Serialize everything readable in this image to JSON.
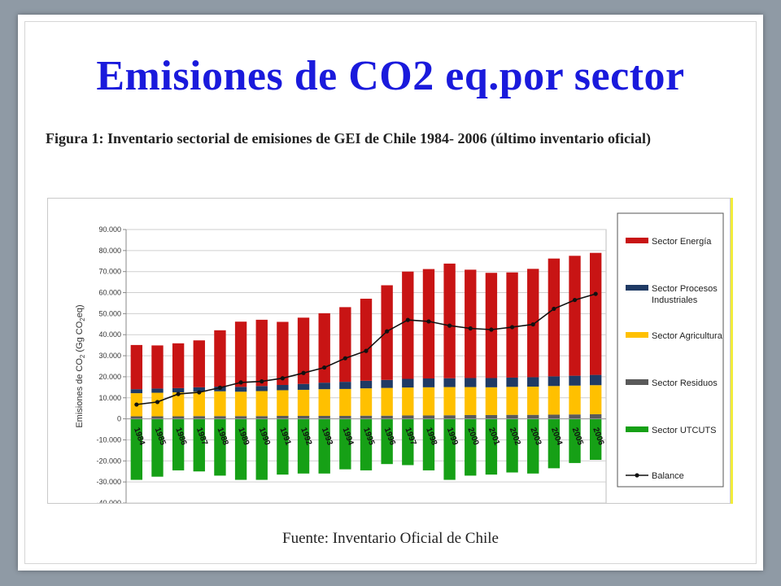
{
  "slide": {
    "title": "Emisiones de CO2 eq.por sector",
    "subtitle": "Figura 1: Inventario sectorial de emisiones de GEI de Chile 1984- 2006 (último inventario oficial)",
    "source": "Fuente: Inventario Oficial de Chile"
  },
  "colors": {
    "title": "#1a1adc",
    "energia": "#c81414",
    "procesos": "#1f3a64",
    "agricultura": "#ffc000",
    "residuos": "#5a5a5a",
    "utcuts": "#16a016",
    "balance": "#111111",
    "accent_yellow": "#f2ec3a"
  },
  "chart_data": {
    "type": "bar",
    "subtype": "stacked-bar-with-line",
    "ylabel_parts": [
      "Emisiones de CO",
      "2",
      " (Gg CO",
      "2",
      "eq)"
    ],
    "ylim": [
      -40000,
      90000
    ],
    "yticks": [
      90000,
      80000,
      70000,
      60000,
      50000,
      40000,
      30000,
      20000,
      10000,
      0,
      -10000,
      -20000,
      -30000,
      -40000
    ],
    "ytick_labels": [
      "90.000",
      "80.000",
      "70.000",
      "60.000",
      "50.000",
      "40.000",
      "30.000",
      "20.000",
      "10.000",
      "0",
      "-10.000",
      "-20.000",
      "-30.000",
      "-40.000"
    ],
    "grid": true,
    "legend_position": "right",
    "categories": [
      "1984",
      "1985",
      "1986",
      "1987",
      "1988",
      "1989",
      "1990",
      "1991",
      "1992",
      "1993",
      "1994",
      "1995",
      "1996",
      "1997",
      "1998",
      "1999",
      "2000",
      "2001",
      "2002",
      "2003",
      "2004",
      "2005",
      "2006"
    ],
    "series": [
      {
        "name": "Sector Energía",
        "key": "energia",
        "kind": "bar",
        "values": [
          21000,
          20500,
          21300,
          22300,
          26800,
          31000,
          31500,
          30000,
          31500,
          33000,
          35500,
          39000,
          45000,
          51000,
          52000,
          54500,
          51500,
          50000,
          50000,
          51500,
          56000,
          57000,
          58000
        ]
      },
      {
        "name": "Sector Procesos Industriales",
        "key": "procesos",
        "kind": "bar",
        "values": [
          1900,
          2000,
          2000,
          2100,
          2200,
          2300,
          2400,
          2500,
          2800,
          3100,
          3400,
          3600,
          3800,
          4100,
          4200,
          4200,
          4300,
          4400,
          4400,
          4500,
          4600,
          4700,
          4900
        ]
      },
      {
        "name": "Sector Agricultura",
        "key": "agricultura",
        "kind": "bar",
        "values": [
          11000,
          11200,
          11400,
          11600,
          11800,
          11600,
          11900,
          12200,
          12400,
          12700,
          12800,
          13000,
          13200,
          13300,
          13400,
          13400,
          13300,
          13200,
          13300,
          13400,
          13600,
          13700,
          13800
        ]
      },
      {
        "name": "Sector Residuos",
        "key": "residuos",
        "kind": "bar",
        "values": [
          1200,
          1200,
          1200,
          1300,
          1300,
          1300,
          1300,
          1400,
          1400,
          1400,
          1400,
          1500,
          1500,
          1600,
          1600,
          1700,
          1800,
          1800,
          1900,
          1900,
          2000,
          2100,
          2200
        ]
      },
      {
        "name": "Sector UTCUTS",
        "key": "utcuts",
        "kind": "bar",
        "values": [
          -29000,
          -27500,
          -24500,
          -25000,
          -27000,
          -29000,
          -29000,
          -26500,
          -26000,
          -26000,
          -24000,
          -24500,
          -21500,
          -22000,
          -24500,
          -29000,
          -27000,
          -26500,
          -25500,
          -26000,
          -23500,
          -21000,
          -19500
        ]
      },
      {
        "name": "Balance",
        "key": "balance",
        "kind": "line",
        "values": [
          6800,
          8000,
          11800,
          12600,
          14800,
          17300,
          17800,
          19300,
          21800,
          24400,
          28800,
          32300,
          41600,
          47000,
          46300,
          44300,
          43000,
          42400,
          43600,
          44900,
          52300,
          56500,
          59400
        ]
      }
    ]
  }
}
